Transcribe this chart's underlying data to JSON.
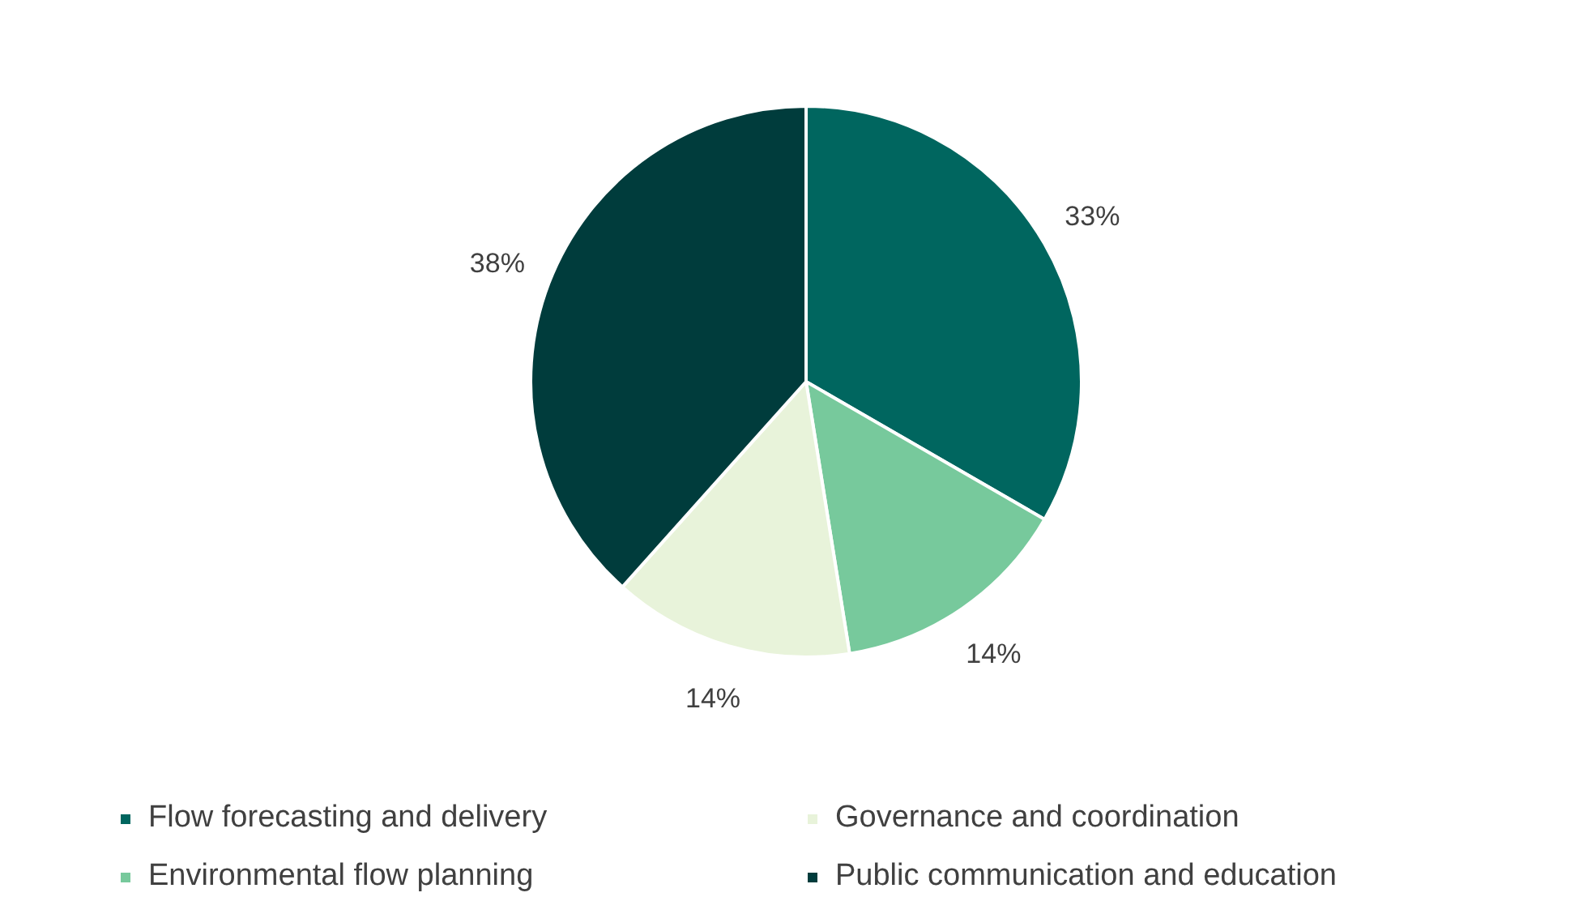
{
  "chart_data": {
    "type": "pie",
    "categories": [
      "Flow forecasting and delivery",
      "Environmental flow planning",
      "Governance and coordination",
      "Public communication and education"
    ],
    "values": [
      33,
      14,
      14,
      38
    ],
    "colors": [
      "#00665f",
      "#77c99c",
      "#e8f3da",
      "#003c3c"
    ],
    "value_labels": [
      "33%",
      "14%",
      "14%",
      "38%"
    ],
    "legend": "bottom"
  }
}
